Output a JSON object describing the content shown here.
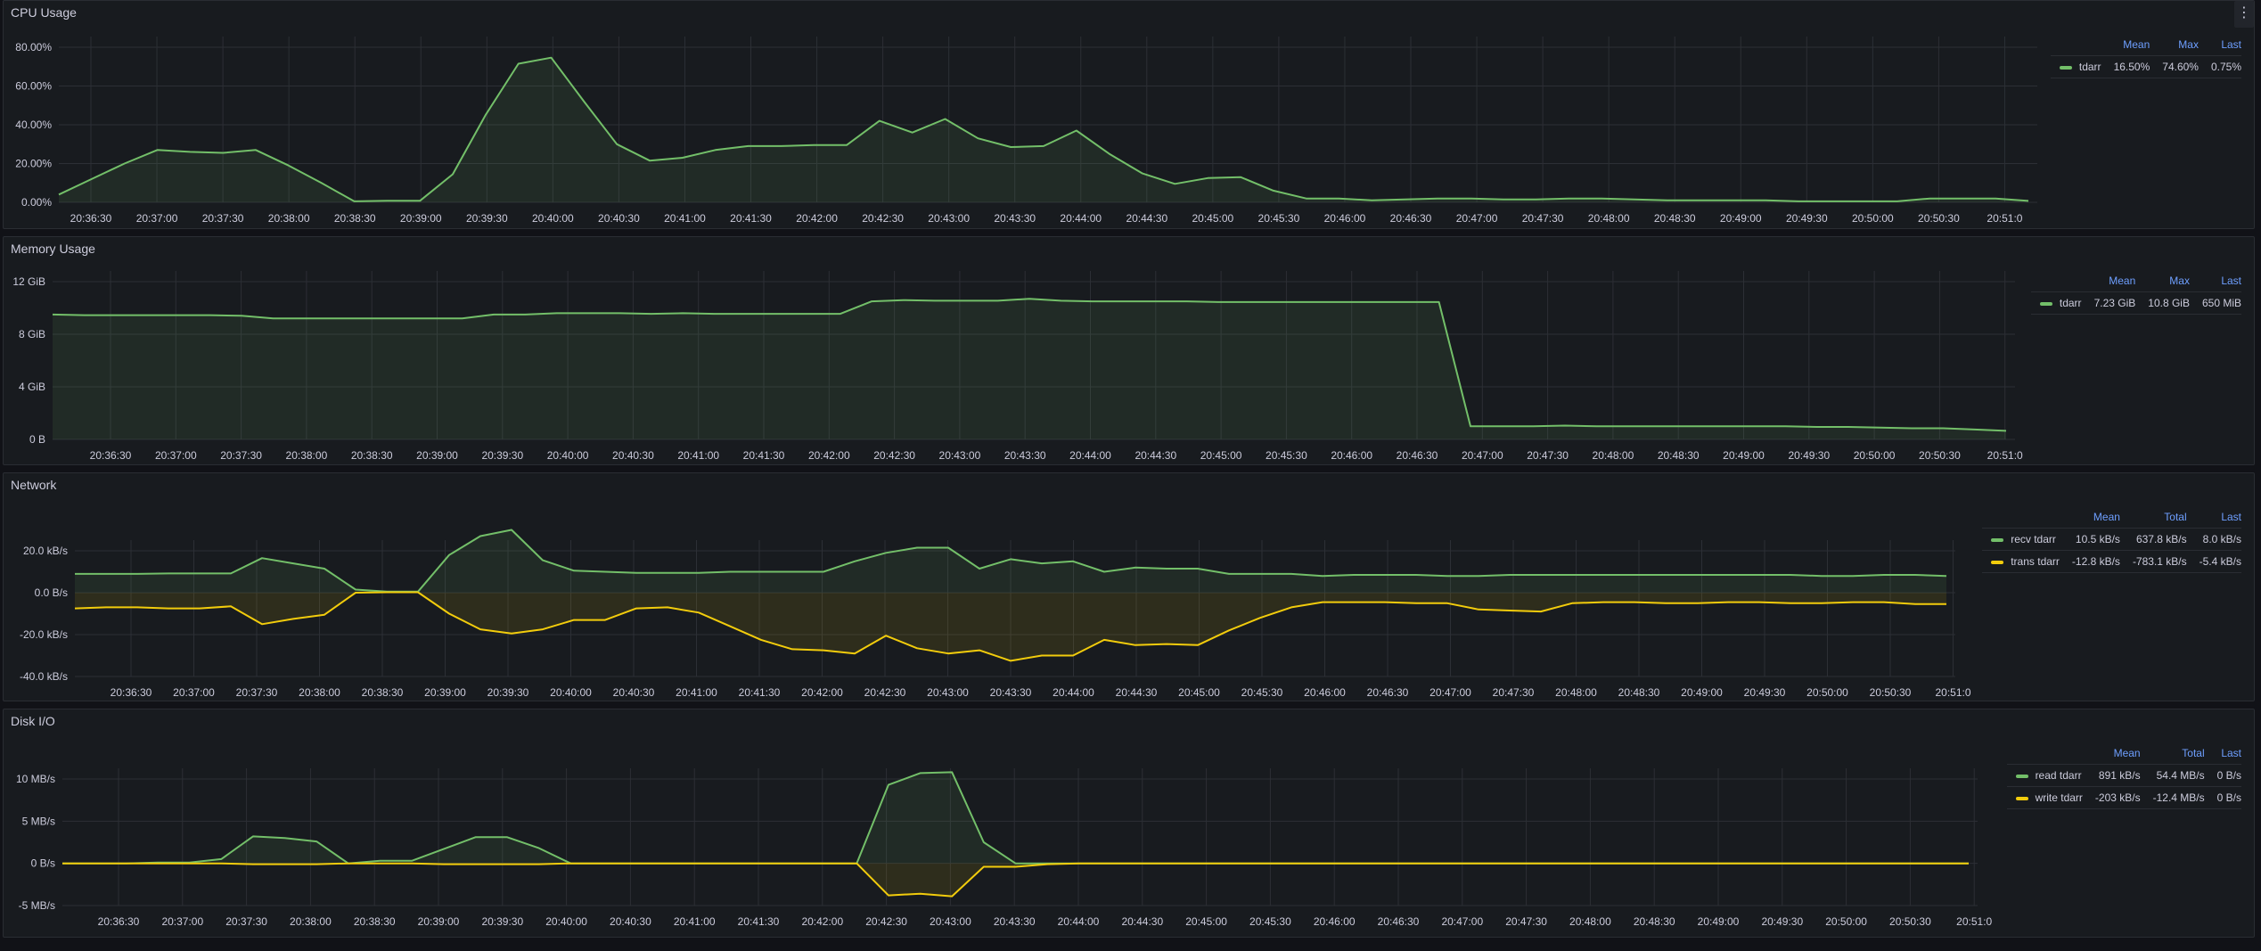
{
  "colors": {
    "green": "#73bf69",
    "yellow": "#f2cc0c",
    "grid": "#2c2f35",
    "legend_header": "#6e9fff"
  },
  "panels": [
    {
      "id": "cpu",
      "title": "CPU Usage",
      "menu_icon": "⋮",
      "legend": {
        "columns": [
          "Mean",
          "Max",
          "Last"
        ],
        "rows": [
          {
            "name": "tdarr",
            "color": "#73bf69",
            "values": [
              "16.50%",
              "74.60%",
              "0.75%"
            ]
          }
        ]
      }
    },
    {
      "id": "memory",
      "title": "Memory Usage",
      "legend": {
        "columns": [
          "Mean",
          "Max",
          "Last"
        ],
        "rows": [
          {
            "name": "tdarr",
            "color": "#73bf69",
            "values": [
              "7.23 GiB",
              "10.8 GiB",
              "650 MiB"
            ]
          }
        ]
      }
    },
    {
      "id": "network",
      "title": "Network",
      "legend": {
        "columns": [
          "Mean",
          "Total",
          "Last"
        ],
        "rows": [
          {
            "name": "recv tdarr",
            "color": "#73bf69",
            "values": [
              "10.5 kB/s",
              "637.8 kB/s",
              "8.0 kB/s"
            ]
          },
          {
            "name": "trans tdarr",
            "color": "#f2cc0c",
            "values": [
              "-12.8 kB/s",
              "-783.1 kB/s",
              "-5.4 kB/s"
            ]
          }
        ]
      }
    },
    {
      "id": "disk",
      "title": "Disk I/O",
      "legend": {
        "columns": [
          "Mean",
          "Total",
          "Last"
        ],
        "rows": [
          {
            "name": "read tdarr",
            "color": "#73bf69",
            "values": [
              "891 kB/s",
              "54.4 MB/s",
              "0 B/s"
            ]
          },
          {
            "name": "write tdarr",
            "color": "#f2cc0c",
            "values": [
              "-203 kB/s",
              "-12.4 MB/s",
              "0 B/s"
            ]
          }
        ]
      }
    }
  ],
  "chart_data": [
    {
      "type": "line",
      "title": "CPU Usage",
      "xlabel": "",
      "ylabel": "",
      "yticks": [
        "0.00%",
        "20.00%",
        "40.00%",
        "60.00%",
        "80.00%"
      ],
      "ylim": [
        0,
        80
      ],
      "xticks": [
        "20:36:30",
        "20:37:00",
        "20:37:30",
        "20:38:00",
        "20:38:30",
        "20:39:00",
        "20:39:30",
        "20:40:00",
        "20:40:30",
        "20:41:00",
        "20:41:30",
        "20:42:00",
        "20:42:30",
        "20:43:00",
        "20:43:30",
        "20:44:00",
        "20:44:30",
        "20:45:00",
        "20:45:30",
        "20:46:00",
        "20:46:30",
        "20:47:00",
        "20:47:30",
        "20:48:00",
        "20:48:30",
        "20:49:00",
        "20:49:30",
        "20:50:00",
        "20:50:30",
        "20:51:0"
      ],
      "x_start": "20:36:05",
      "x_step_s": 15,
      "grid": true,
      "legend_position": "right",
      "series": [
        {
          "name": "tdarr",
          "color": "#73bf69",
          "values": [
            4,
            12,
            20,
            27,
            26,
            25.5,
            27,
            19,
            10,
            0.5,
            0.8,
            0.8,
            14.5,
            45,
            71.5,
            74.6,
            52,
            30,
            21.5,
            23,
            27,
            29,
            29,
            29.5,
            29.5,
            42,
            36,
            43,
            33,
            28.5,
            29,
            37,
            25,
            15,
            9.5,
            12.5,
            13,
            6,
            2,
            2,
            1,
            1.5,
            2,
            2,
            1.5,
            1.5,
            2,
            2,
            1.5,
            1,
            1,
            1,
            1,
            0.5,
            0.5,
            0.5,
            0.5,
            2,
            2,
            2,
            0.75
          ]
        }
      ]
    },
    {
      "type": "line",
      "title": "Memory Usage",
      "xlabel": "",
      "ylabel": "",
      "yticks": [
        "0 B",
        "4 GiB",
        "8 GiB",
        "12 GiB"
      ],
      "ylim": [
        0,
        12
      ],
      "xticks": [
        "20:36:30",
        "20:37:00",
        "20:37:30",
        "20:38:00",
        "20:38:30",
        "20:39:00",
        "20:39:30",
        "20:40:00",
        "20:40:30",
        "20:41:00",
        "20:41:30",
        "20:42:00",
        "20:42:30",
        "20:43:00",
        "20:43:30",
        "20:44:00",
        "20:44:30",
        "20:45:00",
        "20:45:30",
        "20:46:00",
        "20:46:30",
        "20:47:00",
        "20:47:30",
        "20:48:00",
        "20:48:30",
        "20:49:00",
        "20:49:30",
        "20:50:00",
        "20:50:30",
        "20:51:0"
      ],
      "x_start": "20:36:05",
      "x_step_s": 15,
      "grid": true,
      "legend_position": "right",
      "series": [
        {
          "name": "tdarr",
          "color": "#73bf69",
          "values": [
            9.5,
            9.45,
            9.45,
            9.45,
            9.45,
            9.45,
            9.4,
            9.2,
            9.2,
            9.2,
            9.2,
            9.2,
            9.2,
            9.2,
            9.5,
            9.5,
            9.6,
            9.6,
            9.6,
            9.55,
            9.6,
            9.55,
            9.55,
            9.55,
            9.55,
            9.55,
            10.5,
            10.6,
            10.55,
            10.55,
            10.55,
            10.7,
            10.55,
            10.5,
            10.5,
            10.5,
            10.5,
            10.45,
            10.45,
            10.45,
            10.45,
            10.45,
            10.45,
            10.45,
            10.45,
            1.0,
            1.0,
            1.0,
            1.05,
            1.0,
            1.0,
            1.0,
            1.0,
            1.0,
            1.0,
            1.0,
            0.95,
            0.95,
            0.9,
            0.85,
            0.85,
            0.75,
            0.65
          ]
        }
      ]
    },
    {
      "type": "line",
      "title": "Network",
      "xlabel": "",
      "ylabel": "",
      "yticks": [
        "-40.0 kB/s",
        "-20.0 kB/s",
        "0.0 B/s",
        "20.0 kB/s"
      ],
      "ylim": [
        -42,
        32
      ],
      "xticks": [
        "20:36:30",
        "20:37:00",
        "20:37:30",
        "20:38:00",
        "20:38:30",
        "20:39:00",
        "20:39:30",
        "20:40:00",
        "20:40:30",
        "20:41:00",
        "20:41:30",
        "20:42:00",
        "20:42:30",
        "20:43:00",
        "20:43:30",
        "20:44:00",
        "20:44:30",
        "20:45:00",
        "20:45:30",
        "20:46:00",
        "20:46:30",
        "20:47:00",
        "20:47:30",
        "20:48:00",
        "20:48:30",
        "20:49:00",
        "20:49:30",
        "20:50:00",
        "20:50:30",
        "20:51:0"
      ],
      "x_start": "20:36:05",
      "x_step_s": 15,
      "grid": true,
      "legend_position": "right",
      "series": [
        {
          "name": "recv tdarr",
          "color": "#73bf69",
          "values": [
            9,
            9,
            9,
            9.2,
            9.2,
            9.2,
            16.5,
            14,
            11.5,
            1.5,
            0.5,
            0.5,
            18,
            27,
            30,
            15.5,
            10.5,
            10,
            9.5,
            9.5,
            9.5,
            10,
            10,
            10,
            10,
            15,
            19,
            21.5,
            21.5,
            11.5,
            16,
            14,
            15,
            10,
            12,
            11.5,
            11.5,
            9,
            9,
            9,
            8,
            8.5,
            8.5,
            8.5,
            8,
            8,
            8.5,
            8.5,
            8.5,
            8.5,
            8.5,
            8.5,
            8.5,
            8.5,
            8.5,
            8.5,
            8,
            8,
            8.5,
            8.5,
            8.0
          ]
        },
        {
          "name": "trans tdarr",
          "color": "#f2cc0c",
          "values": [
            -7.5,
            -7,
            -7,
            -7.5,
            -7.5,
            -6.5,
            -15,
            -12.5,
            -10.5,
            0,
            0.2,
            0.2,
            -10,
            -17.5,
            -19.5,
            -17.5,
            -13,
            -13,
            -7.5,
            -7,
            -9.5,
            -16,
            -22.5,
            -27,
            -27.5,
            -29,
            -20.5,
            -26.5,
            -29,
            -27.5,
            -32.5,
            -30,
            -30,
            -22.5,
            -25,
            -24.5,
            -25,
            -18,
            -12,
            -7,
            -4.5,
            -4.5,
            -4.5,
            -5,
            -5,
            -8,
            -8.5,
            -9,
            -5,
            -4.5,
            -4.5,
            -5,
            -5,
            -4.5,
            -4.5,
            -5,
            -5,
            -4.5,
            -4.5,
            -5.4,
            -5.4
          ]
        }
      ]
    },
    {
      "type": "line",
      "title": "Disk I/O",
      "xlabel": "",
      "ylabel": "",
      "yticks": [
        "-5 MB/s",
        "0 B/s",
        "5 MB/s",
        "10 MB/s"
      ],
      "ylim": [
        -6,
        13
      ],
      "xticks": [
        "20:36:30",
        "20:37:00",
        "20:37:30",
        "20:38:00",
        "20:38:30",
        "20:39:00",
        "20:39:30",
        "20:40:00",
        "20:40:30",
        "20:41:00",
        "20:41:30",
        "20:42:00",
        "20:42:30",
        "20:43:00",
        "20:43:30",
        "20:44:00",
        "20:44:30",
        "20:45:00",
        "20:45:30",
        "20:46:00",
        "20:46:30",
        "20:47:00",
        "20:47:30",
        "20:48:00",
        "20:48:30",
        "20:49:00",
        "20:49:30",
        "20:50:00",
        "20:50:30",
        "20:51:0"
      ],
      "x_start": "20:36:05",
      "x_step_s": 15,
      "grid": true,
      "legend_position": "right",
      "series": [
        {
          "name": "read tdarr",
          "color": "#73bf69",
          "values": [
            0,
            0,
            0,
            0.1,
            0.1,
            0.5,
            3.2,
            3,
            2.6,
            0,
            0.3,
            0.3,
            1.7,
            3.1,
            3.1,
            1.8,
            0,
            0,
            0,
            0,
            0,
            0,
            0,
            0,
            0,
            0,
            9.3,
            10.7,
            10.8,
            2.5,
            0,
            0,
            0,
            0,
            0,
            0,
            0,
            0,
            0,
            0,
            0,
            0,
            0,
            0,
            0,
            0,
            0,
            0,
            0,
            0,
            0,
            0,
            0,
            0,
            0,
            0,
            0,
            0,
            0,
            0,
            0
          ]
        },
        {
          "name": "write tdarr",
          "color": "#f2cc0c",
          "values": [
            0,
            0,
            0,
            0,
            0,
            0,
            -0.1,
            -0.1,
            -0.1,
            0,
            0,
            0,
            -0.1,
            -0.1,
            -0.1,
            -0.1,
            0,
            0,
            0,
            0,
            0,
            0,
            0,
            0,
            0,
            0,
            -3.8,
            -3.6,
            -3.9,
            -0.4,
            -0.4,
            -0.1,
            0,
            0,
            0,
            0,
            0,
            0,
            0,
            0,
            0,
            0,
            0,
            0,
            0,
            0,
            0,
            0,
            0,
            0,
            0,
            0,
            0,
            0,
            0,
            0,
            0,
            0,
            0,
            0,
            0
          ]
        }
      ]
    }
  ]
}
